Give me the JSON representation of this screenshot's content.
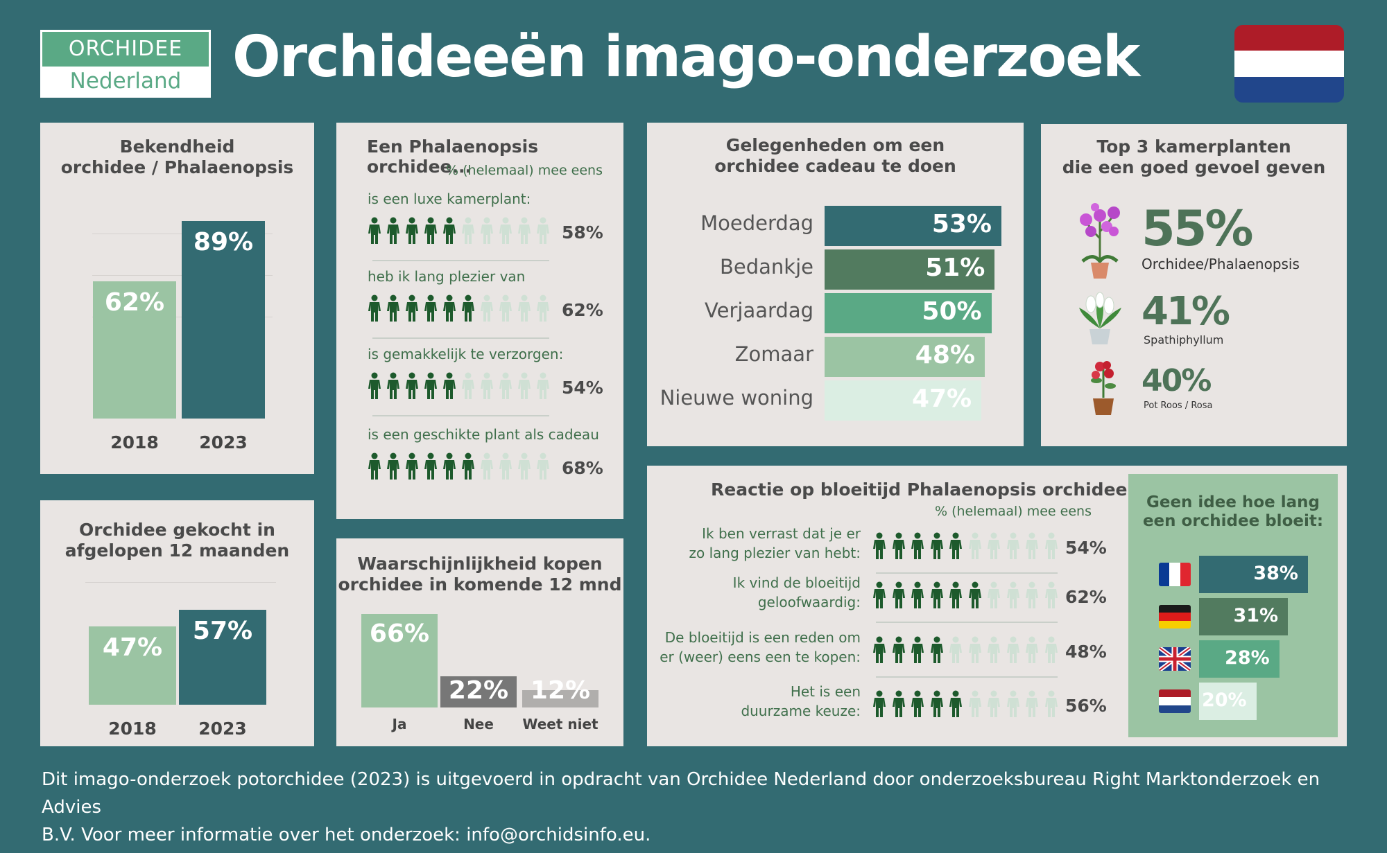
{
  "logo": {
    "line1": "ORCHIDEE",
    "line2": "Nederland"
  },
  "title": "Orchideeën imago-onderzoek",
  "colors": {
    "dark_teal": "#336b72",
    "light_green": "#9bc4a3",
    "dark_green": "#527b5f",
    "mid_green": "#5aa985",
    "pale_green": "#dbeee3",
    "person_dark": "#1d5a2c",
    "person_light": "#cfe0d4",
    "panel_bg": "#e9e5e3"
  },
  "awareness": {
    "title_line1": "Bekendheid",
    "title_line2": "orchidee / Phalaenopsis",
    "chart_data": {
      "type": "bar",
      "categories": [
        "2018",
        "2023"
      ],
      "values": [
        62,
        89
      ],
      "value_labels": [
        "62%",
        "89%"
      ],
      "ylim": [
        0,
        100
      ]
    }
  },
  "bought": {
    "title_line1": "Orchidee gekocht in",
    "title_line2": "afgelopen 12 maanden",
    "chart_data": {
      "type": "bar",
      "categories": [
        "2018",
        "2023"
      ],
      "values": [
        47,
        57
      ],
      "value_labels": [
        "47%",
        "57%"
      ],
      "ylim": [
        0,
        100
      ]
    }
  },
  "phal": {
    "title": "Een Phalaenopsis orchidee...",
    "subtitle": "% (helemaal) mee eens",
    "chart_data": {
      "type": "bar",
      "categories": [
        "is een luxe kamerplant:",
        "heb ik lang plezier van",
        "is gemakkelijk te verzorgen:",
        "is een geschikte plant als cadeau"
      ],
      "values": [
        58,
        62,
        54,
        68
      ],
      "value_labels": [
        "58%",
        "62%",
        "54%",
        "68%"
      ],
      "icons_filled": [
        5,
        6,
        5,
        6
      ],
      "icons_total": 10
    }
  },
  "likelihood": {
    "title_line1": "Waarschijnlijkheid kopen",
    "title_line2": "orchidee in komende 12 mnd",
    "chart_data": {
      "type": "bar",
      "categories": [
        "Ja",
        "Nee",
        "Weet niet"
      ],
      "values": [
        66,
        22,
        12
      ],
      "value_labels": [
        "66%",
        "22%",
        "12%"
      ]
    }
  },
  "occasions": {
    "title_line1": "Gelegenheden om een",
    "title_line2": "orchidee cadeau te doen",
    "chart_data": {
      "type": "bar",
      "orientation": "horizontal",
      "categories": [
        "Moederdag",
        "Bedankje",
        "Verjaardag",
        "Zomaar",
        "Nieuwe woning"
      ],
      "values": [
        53,
        51,
        50,
        48,
        47
      ],
      "value_labels": [
        "53%",
        "51%",
        "50%",
        "48%",
        "47%"
      ]
    }
  },
  "top3": {
    "title_line1": "Top 3 kamerplanten",
    "title_line2": "die een goed gevoel geven",
    "items": [
      {
        "pct": "55%",
        "name": "Orchidee/Phalaenopsis",
        "icon": "orchid-plant-icon"
      },
      {
        "pct": "41%",
        "name": "Spathiphyllum",
        "icon": "peace-lily-icon"
      },
      {
        "pct": "40%",
        "name": "Pot Roos / Rosa",
        "icon": "potted-rose-icon"
      }
    ]
  },
  "reaction": {
    "title": "Reactie op bloeitijd Phalaenopsis orchidee",
    "subtitle": "% (helemaal) mee eens",
    "chart_data": {
      "type": "bar",
      "categories": [
        "Ik ben verrast dat je er zo lang plezier van hebt:",
        "Ik vind de bloeitijd geloofwaardig:",
        "De bloeitijd is een reden om er (weer) eens een te kopen:",
        "Het is een duurzame keuze:"
      ],
      "values": [
        54,
        62,
        48,
        56
      ],
      "value_labels": [
        "54%",
        "62%",
        "48%",
        "56%"
      ],
      "icons_filled": [
        5,
        6,
        4,
        5
      ],
      "icons_total": 10
    },
    "lines": [
      [
        "Ik ben verrast dat je er",
        "zo lang plezier van hebt:"
      ],
      [
        "Ik vind de bloeitijd",
        "geloofwaardig:"
      ],
      [
        "De bloeitijd is een reden om",
        "er (weer) eens een te kopen:"
      ],
      [
        "Het is een",
        "duurzame keuze:"
      ]
    ]
  },
  "noidea": {
    "title_line1": "Geen idee hoe lang",
    "title_line2": "een orchidee bloeit:",
    "chart_data": {
      "type": "bar",
      "orientation": "horizontal",
      "categories": [
        "France",
        "Germany",
        "United Kingdom",
        "Netherlands"
      ],
      "values": [
        38,
        31,
        28,
        20
      ],
      "value_labels": [
        "38%",
        "31%",
        "28%",
        "20%"
      ]
    }
  },
  "footer": {
    "line1": "Dit imago-onderzoek potorchidee (2023) is uitgevoerd in opdracht van Orchidee Nederland door onderzoeksbureau Right Marktonderzoek en Advies",
    "line2": "B.V. Voor meer informatie over het onderzoek: info@orchidsinfo.eu."
  }
}
